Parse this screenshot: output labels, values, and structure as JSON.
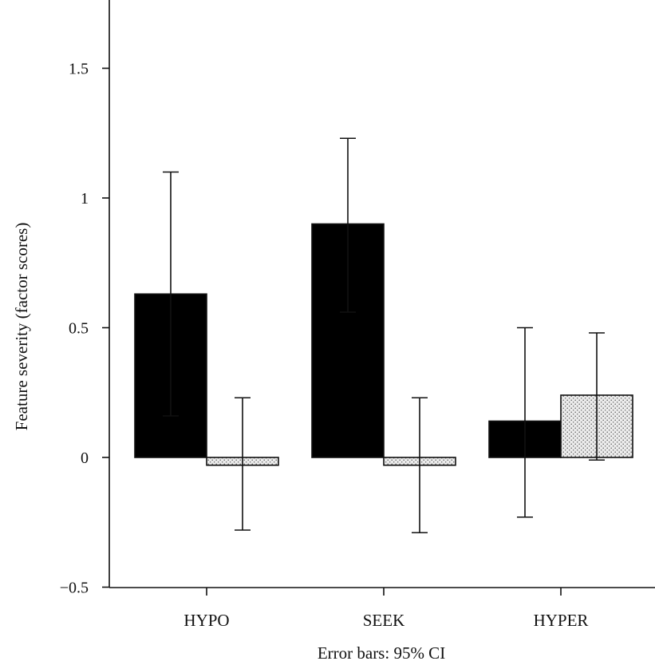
{
  "chart_data": {
    "type": "bar",
    "categories": [
      "HYPO",
      "SEEK",
      "HYPER"
    ],
    "series": [
      {
        "color": "#000000",
        "fill": "solid",
        "values": [
          0.63,
          0.9,
          0.14
        ],
        "ci_low": [
          0.16,
          0.56,
          -0.23
        ],
        "ci_high": [
          1.1,
          1.23,
          0.5
        ]
      },
      {
        "color": "#e6e6e6",
        "fill": "stipple",
        "values": [
          -0.03,
          -0.03,
          0.24
        ],
        "ci_low": [
          -0.28,
          -0.29,
          -0.01
        ],
        "ci_high": [
          0.23,
          0.23,
          0.48
        ]
      }
    ],
    "ylabel": "Feature severity (factor scores)",
    "xlabel": "",
    "ylim": [
      -0.5,
      1.75
    ],
    "yticks": [
      -0.5,
      0,
      0.5,
      1,
      1.5
    ],
    "ytick_labels": [
      "−0.5",
      "0",
      "0.5",
      "1",
      "1.5"
    ],
    "grid": false,
    "legend": "none",
    "footnote": "Error bars: 95% CI"
  }
}
